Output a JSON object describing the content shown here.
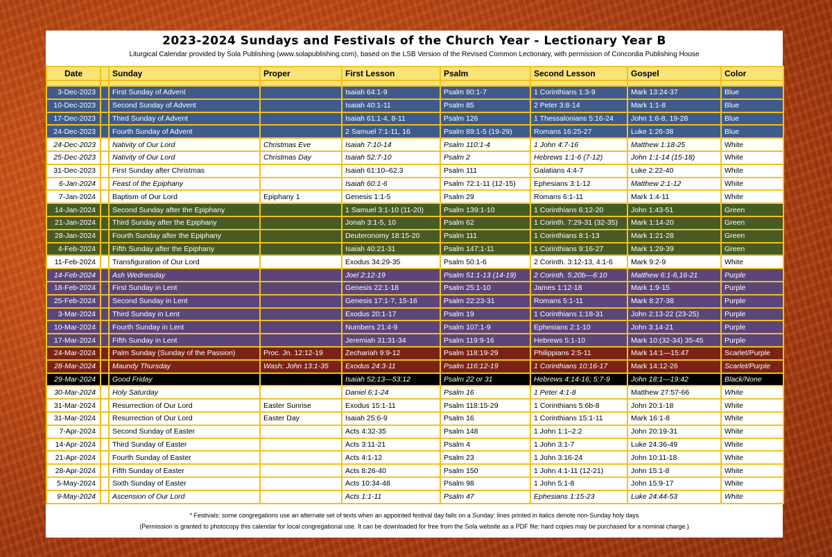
{
  "title": "2023-2024 Sundays and Festivals of the Church Year - Lectionary Year B",
  "subtitle": "Liturgical Calendar provided by Sola Publishing (www.solapublishing.com), based on the LSB Version of the Revised Common Lectionary, with permission of Concordia Publishing House",
  "headers": {
    "date": "Date",
    "sunday": "Sunday",
    "proper": "Proper",
    "first": "First Lesson",
    "psalm": "Psalm",
    "second": "Second Lesson",
    "gospel": "Gospel",
    "color": "Color"
  },
  "colors": {
    "blue": "#3e5b8c",
    "green": "#485b23",
    "purple": "#5c4679",
    "scarlet": "#7a2315",
    "black": "#000000",
    "white": "#ffffff",
    "border": "#f2c21a",
    "header": "#fbe37a"
  },
  "rows": [
    {
      "cls": "blue",
      "date": "3-Dec-2023",
      "sunday": "First Sunday of Advent",
      "proper": "",
      "first": "Isaiah 64:1-9",
      "psalm": "Psalm 80:1-7",
      "second": "1 Corinthians 1:3-9",
      "gospel": "Mark 13:24-37",
      "color": "Blue"
    },
    {
      "cls": "blue",
      "date": "10-Dec-2023",
      "sunday": "Second Sunday of Advent",
      "proper": "",
      "first": "Isaiah 40:1-11",
      "psalm": "Psalm 85",
      "second": "2  Peter 3:8-14",
      "gospel": "Mark 1:1-8",
      "color": "Blue"
    },
    {
      "cls": "blue",
      "date": "17-Dec-2023",
      "sunday": "Third Sunday of Advent",
      "proper": "",
      "first": "Isaiah 61:1-4, 8-11",
      "psalm": "Psalm 126",
      "second": "1 Thessalonians 5:16-24",
      "gospel": "John 1:6-8, 19-28",
      "color": "Blue"
    },
    {
      "cls": "blue",
      "date": "24-Dec-2023",
      "sunday": "Fourth Sunday of Advent",
      "proper": "",
      "first": "2 Samuel 7:1-11, 16",
      "psalm": "Psalm 89:1-5 (19-29)",
      "second": "Romans 16:25-27",
      "gospel": "Luke 1:26-38",
      "color": "Blue"
    },
    {
      "cls": "white",
      "date": "24-Dec-2023",
      "sunday": "Nativity of Our Lord",
      "proper": "Christmas Eve",
      "first": "Isaiah 7:10-14",
      "psalm": "Psalm 110:1-4",
      "second": "1 John 4:7-16",
      "gospel": "Matthew 1:18-25",
      "color": "White",
      "it": [
        "date",
        "sunday",
        "proper",
        "first",
        "psalm",
        "second",
        "gospel"
      ]
    },
    {
      "cls": "white",
      "date": "25-Dec-2023",
      "sunday": "Nativity of Our Lord",
      "proper": "Christmas Day",
      "first": "Isaiah 52:7-10",
      "psalm": "Psalm 2",
      "second": "Hebrews 1:1-6 (7-12)",
      "gospel": "John 1:1-14 (15-18)",
      "color": "White",
      "it": [
        "date",
        "sunday",
        "proper",
        "first",
        "psalm",
        "second",
        "gospel"
      ]
    },
    {
      "cls": "white",
      "date": "31-Dec-2023",
      "sunday": "First Sunday after Christmas",
      "proper": "",
      "first": "Isaiah 61:10–62:3",
      "psalm": "Psalm 111",
      "second": "Galatians 4:4-7",
      "gospel": "Luke 2:22-40",
      "color": "White"
    },
    {
      "cls": "white",
      "date": "6-Jan-2024",
      "sunday": "Feast of the Epiphany",
      "proper": "",
      "first": "Isaiah 60:1-6",
      "psalm": "Psalm 72:1-11 (12-15)",
      "second": "Ephesians 3:1-12",
      "gospel": "Matthew 2:1-12",
      "color": "White",
      "it": [
        "date",
        "sunday",
        "first",
        "gospel"
      ]
    },
    {
      "cls": "white",
      "date": "7-Jan-2024",
      "sunday": "Baptism of Our Lord",
      "proper": "Epiphany 1",
      "first": "Genesis 1:1-5",
      "psalm": "Psalm 29",
      "second": "Romans 6:1-11",
      "gospel": "Mark 1:4-11",
      "color": "White"
    },
    {
      "cls": "green",
      "date": "14-Jan-2024",
      "sunday": "Second Sunday after the Epiphany",
      "proper": "",
      "first": "1 Samuel 3:1-10 (11-20)",
      "psalm": "Psalm 139:1-10",
      "second": "1 Corinthians 6:12-20",
      "gospel": "John 1:43-51",
      "color": "Green"
    },
    {
      "cls": "green",
      "date": "21-Jan-2024",
      "sunday": "Third Sunday after the Epiphany",
      "proper": "",
      "first": "Jonah 3:1-5, 10",
      "psalm": "Psalm 62",
      "second": "1 Corinth. 7:29-31 (32-35)",
      "gospel": "Mark 1:14-20",
      "color": "Green"
    },
    {
      "cls": "green",
      "date": "28-Jan-2024",
      "sunday": "Fourth Sunday after the Epiphany",
      "proper": "",
      "first": "Deuteronomy 18:15-20",
      "psalm": "Psalm 111",
      "second": "1 Corinthians 8:1-13",
      "gospel": "Mark 1:21-28",
      "color": "Green"
    },
    {
      "cls": "green",
      "date": "4-Feb-2024",
      "sunday": "Fifth Sunday after the Epiphany",
      "proper": "",
      "first": "Isaiah 40:21-31",
      "psalm": "Psalm 147:1-11",
      "second": "1 Corinthians 9:16-27",
      "gospel": "Mark 1:29-39",
      "color": "Green"
    },
    {
      "cls": "white",
      "date": "11-Feb-2024",
      "sunday": "Transfiguration of Our Lord",
      "proper": "",
      "first": "Exodus 34:29-35",
      "psalm": "Psalm 50:1-6",
      "second": "2 Corinth. 3:12-13, 4:1-6",
      "gospel": "Mark 9:2-9",
      "color": "White"
    },
    {
      "cls": "purple",
      "date": "14-Feb-2024",
      "sunday": "Ash Wednesday",
      "proper": "",
      "first": "Joel 2:12-19",
      "psalm": "Psalm 51:1-13 (14-19)",
      "second": "2 Corinth. 5:20b—6:10",
      "gospel": "Matthew 6:1-6,16-21",
      "color": "Purple",
      "it": [
        "date",
        "sunday",
        "first",
        "psalm",
        "second",
        "gospel",
        "color"
      ]
    },
    {
      "cls": "purple",
      "date": "18-Feb-2024",
      "sunday": "First Sunday in Lent",
      "proper": "",
      "first": "Genesis 22:1-18",
      "psalm": "Psalm 25:1-10",
      "second": "James 1:12-18",
      "gospel": "Mark 1:9-15",
      "color": "Purple"
    },
    {
      "cls": "purple",
      "date": "25-Feb-2024",
      "sunday": "Second Sunday in Lent",
      "proper": "",
      "first": "Genesis 17:1-7, 15-16",
      "psalm": "Psalm 22:23-31",
      "second": "Romans 5:1-11",
      "gospel": "Mark 8:27-38",
      "color": "Purple"
    },
    {
      "cls": "purple",
      "date": "3-Mar-2024",
      "sunday": "Third Sunday in Lent",
      "proper": "",
      "first": "Exodus 20:1-17",
      "psalm": "Psalm 19",
      "second": "1 Corinthians 1:18-31",
      "gospel": "John 2:13-22 (23-25)",
      "color": "Purple"
    },
    {
      "cls": "purple",
      "date": "10-Mar-2024",
      "sunday": "Fourth Sunday in Lent",
      "proper": "",
      "first": "Numbers 21:4-9",
      "psalm": "Psalm 107:1-9",
      "second": "Ephesians 2:1-10",
      "gospel": "John 3:14-21",
      "color": "Purple"
    },
    {
      "cls": "purple",
      "date": "17-Mar-2024",
      "sunday": "Fifth Sunday in Lent",
      "proper": "",
      "first": "Jeremiah 31:31-34",
      "psalm": "Psalm 119:9-16",
      "second": "Hebrews 5:1-10",
      "gospel": "Mark 10:(32-34) 35-45",
      "color": "Purple"
    },
    {
      "cls": "scarlet",
      "date": "24-Mar-2024",
      "sunday": "Palm Sunday (Sunday of the Passion)",
      "proper": "Proc. Jn. 12:12-19",
      "first": "Zechariah 9:9-12",
      "psalm": "Psalm 118:19-29",
      "second": "Philippians 2:5-11",
      "gospel": "Mark 14:1—15:47",
      "color": "Scarlet/Purple"
    },
    {
      "cls": "scarlet",
      "date": "28-Mar-2024",
      "sunday": "Maundy Thursday",
      "proper": "Wash: John 13:1-35",
      "first": "Exodus 24:3-11",
      "psalm": "Psalm 116:12-19",
      "second": "1 Corinthians 10:16-17",
      "gospel": "Mark 14:12-26",
      "color": "Scarlet/Purple",
      "it": [
        "date",
        "sunday",
        "proper",
        "first",
        "psalm",
        "second",
        "color"
      ]
    },
    {
      "cls": "black",
      "date": "29-Mar-2024",
      "sunday": "Good Friday",
      "proper": "",
      "first": "Isaiah 52:13—53:12",
      "psalm": "Psalm 22 or 31",
      "second": "Hebrews 4:14-16; 5:7-9",
      "gospel": "John 18:1—19:42",
      "color": "Black/None",
      "it": [
        "date",
        "sunday",
        "first",
        "psalm",
        "second",
        "gospel",
        "color"
      ]
    },
    {
      "cls": "white",
      "date": "30-Mar-2024",
      "sunday": "Holy Saturday",
      "proper": "",
      "first": "Daniel 6:1-24",
      "psalm": "Psalm 16",
      "second": "1 Peter 4:1-8",
      "gospel": "Matthew 27:57-66",
      "color": "White",
      "it": [
        "date",
        "sunday",
        "first",
        "psalm",
        "second",
        "color"
      ]
    },
    {
      "cls": "white",
      "date": "31-Mar-2024",
      "sunday": "Resurrection of Our Lord",
      "proper": "Easter Sunrise",
      "first": "Exodus 15:1-11",
      "psalm": "Psalm 118:15-29",
      "second": "1 Corinthians 5:6b-8",
      "gospel": "John 20:1-18",
      "color": "White"
    },
    {
      "cls": "white",
      "date": "31-Mar-2024",
      "sunday": "Resurrection of Our Lord",
      "proper": "Easter Day",
      "first": "Isaiah 25:6-9",
      "psalm": "Psalm 16",
      "second": "1 Corinthians 15:1-11",
      "gospel": "Mark 16:1-8",
      "color": "White"
    },
    {
      "cls": "white",
      "date": "7-Apr-2024",
      "sunday": "Second Sunday of Easter",
      "proper": "",
      "first": "Acts 4:32-35",
      "psalm": "Psalm 148",
      "second": "1 John 1:1–2:2",
      "gospel": "John 20:19-31",
      "color": "White"
    },
    {
      "cls": "white",
      "date": "14-Apr-2024",
      "sunday": "Third Sunday of Easter",
      "proper": "",
      "first": "Acts 3:11-21",
      "psalm": "Psalm 4",
      "second": "1 John 3:1-7",
      "gospel": "Luke 24:36-49",
      "color": "White"
    },
    {
      "cls": "white",
      "date": "21-Apr-2024",
      "sunday": "Fourth Sunday of Easter",
      "proper": "",
      "first": "Acts 4:1-12",
      "psalm": "Psalm 23",
      "second": "1 John 3:16-24",
      "gospel": "John 10:11-18",
      "color": "White"
    },
    {
      "cls": "white",
      "date": "28-Apr-2024",
      "sunday": "Fifth Sunday of Easter",
      "proper": "",
      "first": "Acts 8:26-40",
      "psalm": "Psalm 150",
      "second": "1 John 4:1-11 (12-21)",
      "gospel": "John 15:1-8",
      "color": "White"
    },
    {
      "cls": "white",
      "date": "5-May-2024",
      "sunday": "Sixth Sunday of Easter",
      "proper": "",
      "first": "Acts 10:34-48",
      "psalm": "Psalm 98",
      "second": "1 John 5:1-8",
      "gospel": "John 15:9-17",
      "color": "White"
    },
    {
      "cls": "white",
      "date": "9-May-2024",
      "sunday": "Ascension of Our Lord",
      "proper": "",
      "first": "Acts 1:1-11",
      "psalm": "Psalm 47",
      "second": "Ephesians 1:15-23",
      "gospel": "Luke 24:44-53",
      "color": "White",
      "it": [
        "date",
        "sunday",
        "first",
        "psalm",
        "second",
        "gospel",
        "color"
      ]
    }
  ],
  "footnote1": "* Festivals: some congregations use an alternate set of texts when an appointed festival day falls on a Sunday; lines printed in italics denote non-Sunday holy days",
  "footnote2": "(Permission is granted to photocopy this calendar for local congregational use. It can be downloaded for free from the Sola website as a PDF file; hard copies may be purchased for a nominal charge.)"
}
